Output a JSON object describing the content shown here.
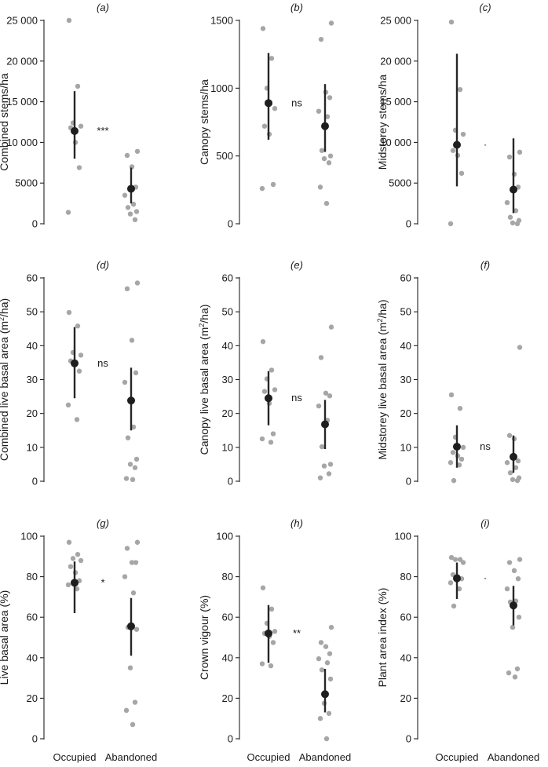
{
  "chart_data": [
    {
      "type": "scatter",
      "panel_label": "(a)",
      "ylabel": "Combined stems/ha",
      "categories": [
        "Occupied",
        "Abandoned"
      ],
      "ylim": [
        0,
        25000
      ],
      "yticks": [
        0,
        5000,
        10000,
        15000,
        20000,
        25000
      ],
      "ytick_labels": [
        "0",
        "5000",
        "10 000",
        "15 000",
        "20 000",
        "25 000"
      ],
      "significance": "***",
      "points": {
        "Occupied": [
          25000,
          16900,
          12400,
          12000,
          11800,
          10000,
          6900,
          1400
        ],
        "Abandoned": [
          8900,
          8400,
          7000,
          4500,
          3500,
          2400,
          2000,
          1500,
          1200,
          500
        ]
      },
      "mean": [
        11400,
        4300
      ],
      "ci_low": [
        8000,
        2500
      ],
      "ci_high": [
        16300,
        6900
      ]
    },
    {
      "type": "scatter",
      "panel_label": "(b)",
      "ylabel": "Canopy stems/ha",
      "categories": [
        "Occupied",
        "Abandoned"
      ],
      "ylim": [
        0,
        1500
      ],
      "yticks": [
        0,
        500,
        1000,
        1500
      ],
      "ytick_labels": [
        "0",
        "500",
        "1000",
        "1500"
      ],
      "significance": "ns",
      "points": {
        "Occupied": [
          1440,
          1220,
          1000,
          850,
          720,
          660,
          290,
          260
        ],
        "Abandoned": [
          1480,
          1360,
          970,
          930,
          830,
          790,
          540,
          500,
          480,
          450,
          270,
          150
        ]
      },
      "mean": [
        890,
        720
      ],
      "ci_low": [
        620,
        530
      ],
      "ci_high": [
        1260,
        1030
      ]
    },
    {
      "type": "scatter",
      "panel_label": "(c)",
      "ylabel": "Midstorey stems/ha",
      "categories": [
        "Occupied",
        "Abandoned"
      ],
      "ylim": [
        0,
        25000
      ],
      "yticks": [
        0,
        5000,
        10000,
        15000,
        20000,
        25000
      ],
      "ytick_labels": [
        "0",
        "5000",
        "10 000",
        "15 000",
        "20 000",
        "25 000"
      ],
      "significance": "·",
      "points": {
        "Occupied": [
          24800,
          16500,
          11500,
          11000,
          9000,
          8400,
          6200,
          0
        ],
        "Abandoned": [
          8800,
          8200,
          6100,
          4500,
          2600,
          1600,
          800,
          400,
          100,
          0
        ]
      },
      "mean": [
        9700,
        4200
      ],
      "ci_low": [
        4600,
        1300
      ],
      "ci_high": [
        20900,
        10500
      ]
    },
    {
      "type": "scatter",
      "panel_label": "(d)",
      "ylabel": "Combined live basal area (m²/ha)",
      "categories": [
        "Occupied",
        "Abandoned"
      ],
      "ylim": [
        0,
        60
      ],
      "yticks": [
        0,
        10,
        20,
        30,
        40,
        50,
        60
      ],
      "ytick_labels": [
        "0",
        "10",
        "20",
        "30",
        "40",
        "50",
        "60"
      ],
      "significance": "ns",
      "points": {
        "Occupied": [
          49.8,
          45.8,
          38.0,
          37.2,
          35.5,
          34.5,
          32.5,
          22.5,
          18.2
        ],
        "Abandoned": [
          58.5,
          56.8,
          41.6,
          32.0,
          29.2,
          16.0,
          12.8,
          6.5,
          5.0,
          4.0,
          0.8,
          0.5
        ]
      },
      "mean": [
        34.8,
        23.8
      ],
      "ci_low": [
        24.5,
        15.0
      ],
      "ci_high": [
        45.5,
        33.5
      ]
    },
    {
      "type": "scatter",
      "panel_label": "(e)",
      "ylabel": "Canopy live basal area (m²/ha)",
      "categories": [
        "Occupied",
        "Abandoned"
      ],
      "ylim": [
        0,
        60
      ],
      "yticks": [
        0,
        10,
        20,
        30,
        40,
        50,
        60
      ],
      "ytick_labels": [
        "0",
        "10",
        "20",
        "30",
        "40",
        "50",
        "60"
      ],
      "significance": "ns",
      "points": {
        "Occupied": [
          41.2,
          32.8,
          30.2,
          27.0,
          26.5,
          23.0,
          14.0,
          12.5,
          11.5
        ],
        "Abandoned": [
          45.5,
          36.5,
          26.0,
          25.2,
          22.2,
          18.0,
          10.2,
          5.0,
          4.5,
          2.2,
          1.0
        ]
      },
      "mean": [
        24.5,
        16.8
      ],
      "ci_low": [
        16.5,
        9.5
      ],
      "ci_high": [
        32.5,
        24.0
      ]
    },
    {
      "type": "scatter",
      "panel_label": "(f)",
      "ylabel": "Midstorey live basal area (m²/ha)",
      "categories": [
        "Occupied",
        "Abandoned"
      ],
      "ylim": [
        0,
        60
      ],
      "yticks": [
        0,
        10,
        20,
        30,
        40,
        50,
        60
      ],
      "ytick_labels": [
        "0",
        "10",
        "20",
        "30",
        "40",
        "50",
        "60"
      ],
      "significance": "ns",
      "points": {
        "Occupied": [
          25.5,
          21.5,
          13.0,
          10.0,
          8.5,
          7.5,
          6.5,
          5.5,
          4.8,
          0.2
        ],
        "Abandoned": [
          39.5,
          13.5,
          12.5,
          6.0,
          5.5,
          4.0,
          2.5,
          1.0,
          0.5,
          0.2
        ]
      },
      "mean": [
        10.2,
        7.2
      ],
      "ci_low": [
        4.0,
        2.5
      ],
      "ci_high": [
        16.5,
        13.5
      ]
    },
    {
      "type": "scatter",
      "panel_label": "(g)",
      "ylabel": "Live basal area (%)",
      "categories": [
        "Occupied",
        "Abandoned"
      ],
      "ylim": [
        0,
        100
      ],
      "yticks": [
        0,
        20,
        40,
        60,
        80,
        100
      ],
      "ytick_labels": [
        "0",
        "20",
        "40",
        "60",
        "80",
        "100"
      ],
      "significance": "*",
      "points": {
        "Occupied": [
          97.0,
          91.0,
          89.0,
          88.0,
          85.0,
          82.0,
          78.0,
          76.0,
          74.0
        ],
        "Abandoned": [
          97.0,
          94.0,
          87.0,
          87.0,
          80.0,
          72.0,
          55.0,
          54.0,
          35.0,
          18.0,
          14.0,
          7.0
        ]
      },
      "mean": [
        77.0,
        55.5
      ],
      "ci_low": [
        62.0,
        41.0
      ],
      "ci_high": [
        87.5,
        69.5
      ]
    },
    {
      "type": "scatter",
      "panel_label": "(h)",
      "ylabel": "Crown vigour (%)",
      "categories": [
        "Occupied",
        "Abandoned"
      ],
      "ylim": [
        0,
        100
      ],
      "yticks": [
        0,
        20,
        40,
        60,
        80,
        100
      ],
      "ytick_labels": [
        "0",
        "20",
        "40",
        "60",
        "80",
        "100"
      ],
      "significance": "**",
      "points": {
        "Occupied": [
          74.5,
          64.0,
          57.0,
          53.0,
          52.0,
          50.5,
          47.5,
          37.0,
          36.0
        ],
        "Abandoned": [
          55.0,
          47.5,
          45.5,
          42.0,
          39.5,
          37.5,
          34.0,
          29.5,
          17.5,
          12.5,
          10.0,
          0.0
        ]
      },
      "mean": [
        52.0,
        22.0
      ],
      "ci_low": [
        37.5,
        13.0
      ],
      "ci_high": [
        66.0,
        34.5
      ]
    },
    {
      "type": "scatter",
      "panel_label": "(i)",
      "ylabel": "Plant area index (%)",
      "categories": [
        "Occupied",
        "Abandoned"
      ],
      "ylim": [
        0,
        100
      ],
      "yticks": [
        0,
        20,
        40,
        60,
        80,
        100
      ],
      "ytick_labels": [
        "0",
        "20",
        "40",
        "60",
        "80",
        "100"
      ],
      "significance": "·",
      "points": {
        "Occupied": [
          89.5,
          88.5,
          88.5,
          87.0,
          81.0,
          80.0,
          79.0,
          77.0,
          74.0,
          65.5
        ],
        "Abandoned": [
          88.5,
          87.0,
          83.0,
          79.0,
          74.0,
          68.0,
          67.5,
          60.0,
          55.0,
          34.5,
          32.5,
          30.5
        ]
      },
      "mean": [
        79.2,
        65.8
      ],
      "ci_low": [
        69.0,
        56.0
      ],
      "ci_high": [
        87.0,
        75.5
      ]
    }
  ]
}
